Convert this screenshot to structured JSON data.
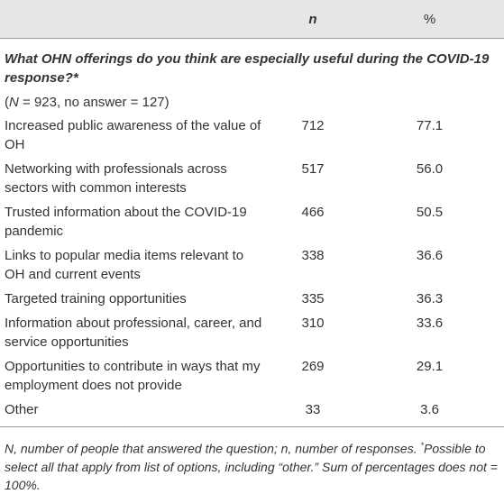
{
  "table": {
    "header": [
      "n",
      "%"
    ],
    "section_title": "What OHN offerings do you think are especially useful during the COVID-19 response?*",
    "subtitle_parts": [
      "(",
      "N",
      " = 923, no answer = 127)"
    ],
    "rows": [
      [
        "Increased public awareness of the value of OH",
        "712",
        "77.1"
      ],
      [
        "Networking with professionals across sectors with common interests",
        "517",
        "56.0"
      ],
      [
        "Trusted information about the COVID-19 pandemic",
        "466",
        "50.5"
      ],
      [
        "Links to popular media items relevant to OH and current events",
        "338",
        "36.6"
      ],
      [
        "Targeted training opportunities",
        "335",
        "36.3"
      ],
      [
        "Information about professional, career, and service opportunities",
        "310",
        "33.6"
      ],
      [
        "Opportunities to contribute in ways that my employment does not provide",
        "269",
        "29.1"
      ],
      [
        "Other",
        "33",
        "3.6"
      ]
    ],
    "footnote_parts": [
      "N, number of people that answered the question; n, number of responses. ",
      "*",
      "Possible to select all that apply from list of options, including “other.” Sum of percentages does not = 100%."
    ]
  }
}
